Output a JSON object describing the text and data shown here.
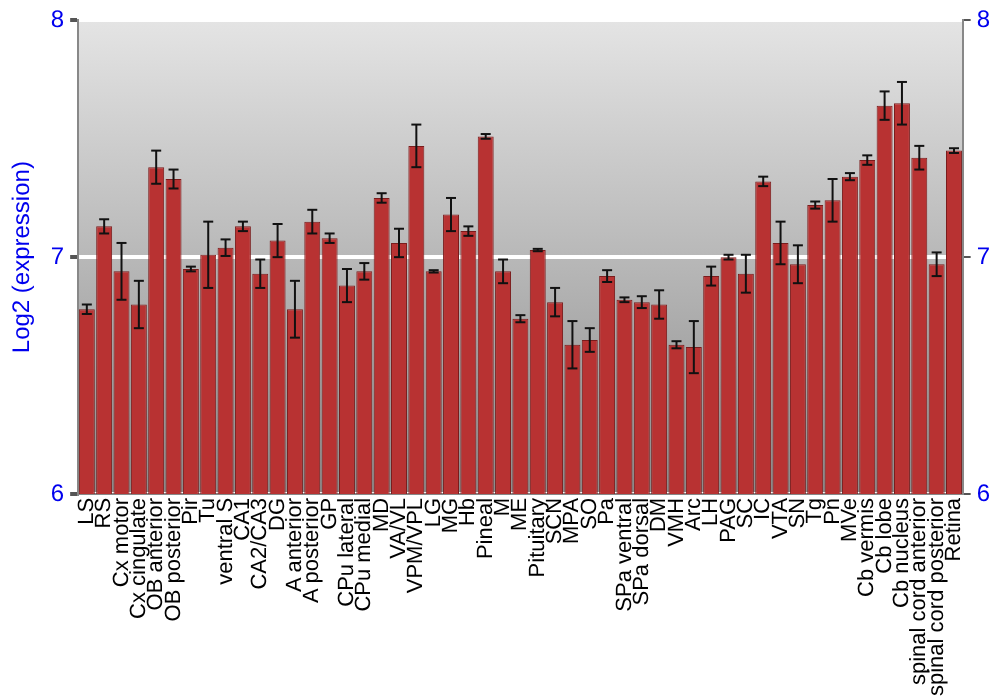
{
  "chart_data": {
    "type": "bar",
    "ylabel": "Log2 (expression)",
    "categories": [
      "LS",
      "RS",
      "Cx motor",
      "Cx cingulate",
      "OB anterior",
      "OB posterior",
      "Pir",
      "Tu",
      "ventral S",
      "CA1",
      "CA2/CA3",
      "DG",
      "A anterior",
      "A posterior",
      "GP",
      "CPu lateral",
      "CPu medial",
      "MD",
      "VA/VL",
      "VPM/VPL",
      "LG",
      "MG",
      "Hb",
      "Pineal",
      "M",
      "ME",
      "Pituitary",
      "SCN",
      "MPA",
      "SO",
      "Pa",
      "SPa ventral",
      "SPa dorsal",
      "DM",
      "VMH",
      "Arc",
      "LH",
      "PAG",
      "SC",
      "IC",
      "VTA",
      "SN",
      "Tg",
      "Pn",
      "MVe",
      "Cb vermis",
      "Cb lobe",
      "Cb nucleus",
      "spinal cord anterior",
      "spinal cord posterior",
      "Retina"
    ],
    "values": [
      6.78,
      7.13,
      6.94,
      6.8,
      7.38,
      7.33,
      6.95,
      7.01,
      7.04,
      7.13,
      6.93,
      7.07,
      6.78,
      7.15,
      7.08,
      6.88,
      6.94,
      7.25,
      7.06,
      7.47,
      6.94,
      7.18,
      7.11,
      7.51,
      6.94,
      6.74,
      7.03,
      6.81,
      6.63,
      6.65,
      6.92,
      6.82,
      6.81,
      6.8,
      6.63,
      6.62,
      6.92,
      7.0,
      6.93,
      7.32,
      7.06,
      6.97,
      7.22,
      7.24,
      7.34,
      7.41,
      7.64,
      7.65,
      7.42,
      6.97,
      7.45
    ],
    "errors": [
      0.02,
      0.03,
      0.12,
      0.1,
      0.07,
      0.04,
      0.01,
      0.14,
      0.035,
      0.02,
      0.06,
      0.07,
      0.12,
      0.05,
      0.02,
      0.07,
      0.035,
      0.02,
      0.06,
      0.09,
      0.005,
      0.07,
      0.02,
      0.01,
      0.05,
      0.015,
      0.005,
      0.06,
      0.1,
      0.05,
      0.025,
      0.01,
      0.025,
      0.06,
      0.015,
      0.11,
      0.04,
      0.01,
      0.08,
      0.02,
      0.09,
      0.08,
      0.015,
      0.09,
      0.015,
      0.02,
      0.06,
      0.09,
      0.05,
      0.05,
      0.01
    ],
    "color": "#b83232",
    "ylim": [
      6,
      8
    ],
    "yticks": [
      6,
      7,
      8
    ],
    "y2lim": [
      6,
      8
    ],
    "y2ticks": [
      6,
      7,
      8
    ],
    "grid": "y"
  }
}
